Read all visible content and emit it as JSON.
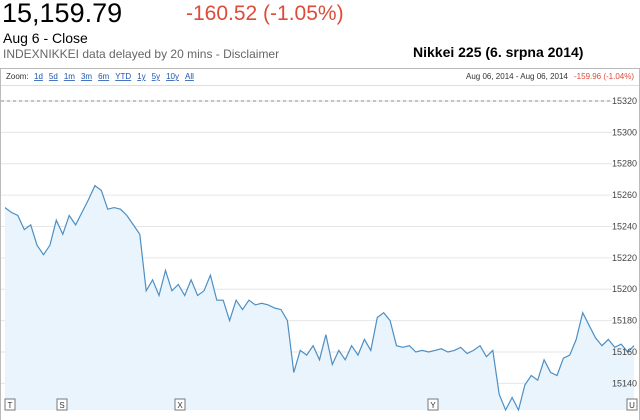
{
  "header": {
    "price": "15,159.79",
    "change": "-160.52 (-1.05%)",
    "status": "Aug 6 - Close",
    "source": "INDEXNIKKEI data delayed by 20 mins - Disclaimer"
  },
  "chart_data": {
    "type": "line",
    "title": "Nikkei 225 (6. srpna 2014)",
    "zoom_label": "Zoom:",
    "zoom_options": [
      "1d",
      "5d",
      "1m",
      "3m",
      "6m",
      "YTD",
      "1y",
      "5y",
      "10y",
      "All"
    ],
    "range": "Aug 06, 2014 - Aug 06, 2014",
    "range_change": "-159.96 (-1.04%)",
    "color": "#4d8fc4",
    "fill": "#e9f4fc",
    "grid": true,
    "ylim": [
      15123,
      15327
    ],
    "yticks": [
      15140,
      15160,
      15180,
      15200,
      15220,
      15240,
      15260,
      15280,
      15300,
      15320
    ],
    "previous_close": 15320,
    "flags": [
      "T",
      "S",
      "X",
      "Y",
      "U"
    ],
    "values": [
      15252,
      15249,
      15247,
      15238,
      15241,
      15228,
      15222,
      15228,
      15244,
      15235,
      15247,
      15241,
      15249,
      15257,
      15266,
      15263,
      15251,
      15252,
      15251,
      15247,
      15241,
      15235,
      15199,
      15206,
      15196,
      15212,
      15199,
      15203,
      15196,
      15206,
      15196,
      15199,
      15209,
      15193,
      15193,
      15180,
      15193,
      15187,
      15193,
      15190,
      15191,
      15190,
      15188,
      15187,
      15180,
      15147,
      15161,
      15158,
      15164,
      15155,
      15171,
      15152,
      15161,
      15155,
      15164,
      15158,
      15168,
      15161,
      15182,
      15185,
      15180,
      15164,
      15163,
      15164,
      15160,
      15161,
      15160,
      15161,
      15162,
      15160,
      15161,
      15163,
      15159,
      15161,
      15164,
      15157,
      15161,
      15133,
      15123,
      15131,
      15123,
      15139,
      15145,
      15142,
      15155,
      15147,
      15145,
      15156,
      15158,
      15168,
      15185,
      15177,
      15169,
      15164,
      15168,
      15163,
      15165,
      15160,
      15164
    ]
  }
}
